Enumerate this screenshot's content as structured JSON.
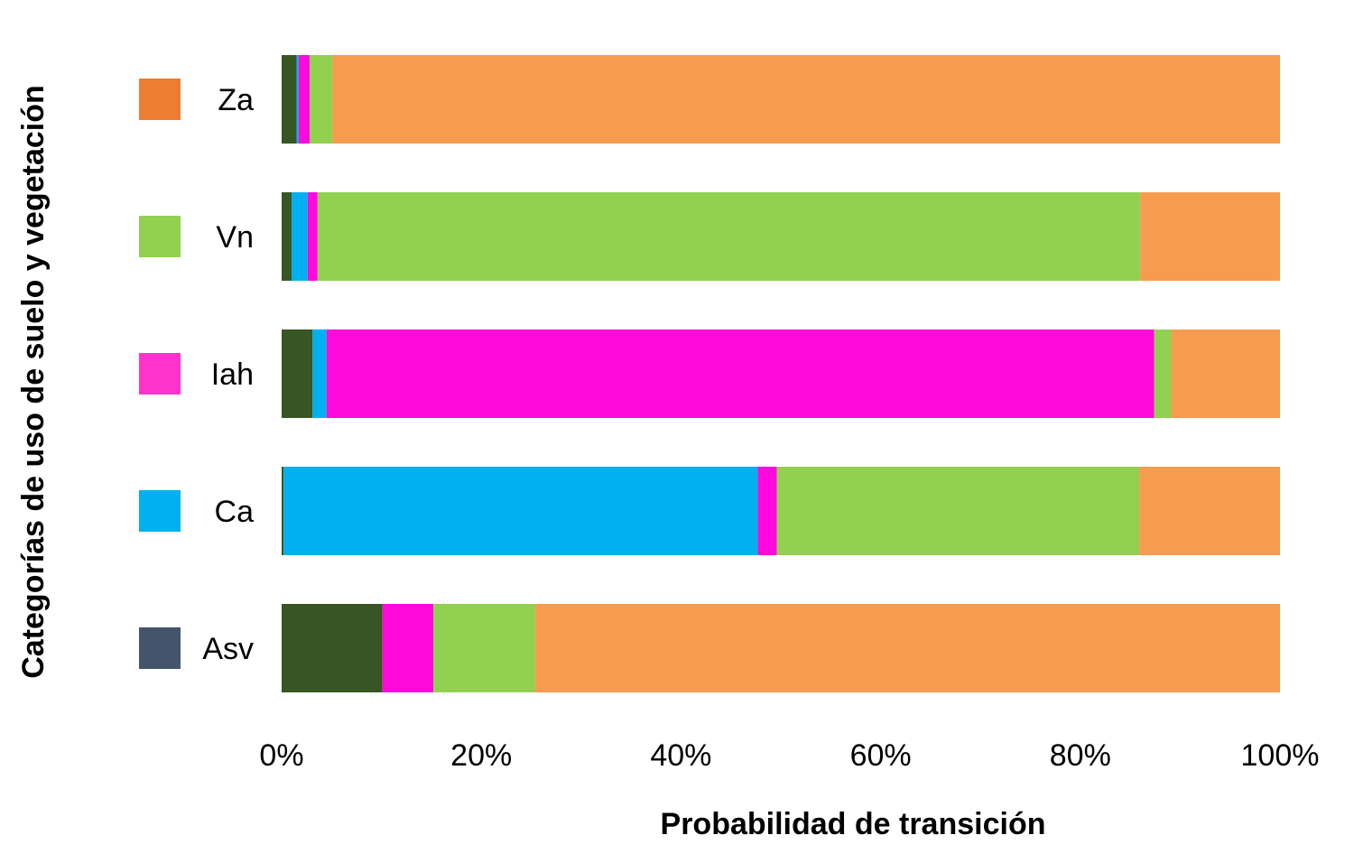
{
  "chart_data": {
    "type": "bar",
    "orientation": "horizontal",
    "stacked": true,
    "xlabel": "Probabilidad de transición",
    "ylabel": "Categorías de uso de suelo y vegetación",
    "xlim": [
      0,
      100
    ],
    "x_ticks": [
      "0%",
      "20%",
      "40%",
      "60%",
      "80%",
      "100%"
    ],
    "grid": false,
    "categories": [
      "Za",
      "Vn",
      "Iah",
      "Ca",
      "Asv"
    ],
    "category_colors": [
      "#ED7D31",
      "#92D050",
      "#FF33CC",
      "#00B0F0",
      "#44546A"
    ],
    "series": [
      {
        "name": "Asv",
        "color": "#375623",
        "values": [
          1.5,
          1.0,
          3.1,
          0.2,
          10.1
        ]
      },
      {
        "name": "Ca",
        "color": "#00B0F0",
        "values": [
          0.2,
          1.6,
          1.4,
          47.5,
          0.0
        ]
      },
      {
        "name": "Iah",
        "color": "#FF0ADC",
        "values": [
          1.1,
          1.0,
          82.9,
          1.9,
          5.1
        ]
      },
      {
        "name": "Vn",
        "color": "#92D050",
        "values": [
          2.3,
          82.4,
          1.7,
          36.3,
          10.2
        ]
      },
      {
        "name": "Za",
        "color": "#F79B51",
        "values": [
          94.9,
          14.0,
          10.9,
          14.1,
          74.6
        ]
      }
    ]
  }
}
